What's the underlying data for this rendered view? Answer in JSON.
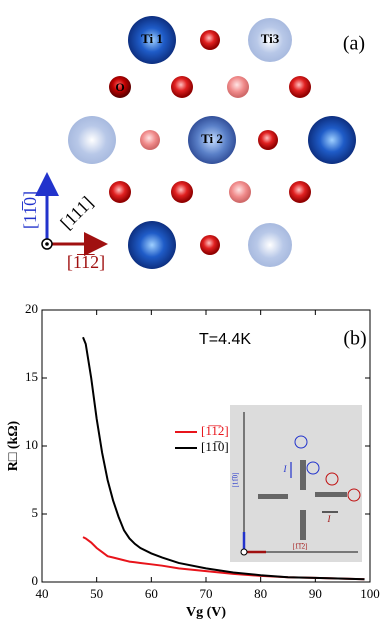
{
  "panel_a": {
    "label": "(a)",
    "atoms": {
      "ti1": "Ti 1",
      "ti3": "Ti3",
      "ti2": "Ti 2",
      "o": "O"
    },
    "directions": {
      "vertical": "[11̅0]",
      "normal": "[111]",
      "horizontal": "[1̅1̅2]"
    }
  },
  "chart_data": {
    "type": "line",
    "label": "(b)",
    "annotation": "T=4.4K",
    "x_label": "Vg (V)",
    "y_label": "R□ (kΩ)",
    "x": [
      47.5,
      48,
      49,
      50,
      51,
      52,
      53,
      54,
      55,
      56,
      57,
      58,
      60,
      62,
      65,
      70,
      75,
      80,
      85,
      90,
      95,
      99
    ],
    "series": [
      {
        "name": "[1̅1̅2]",
        "color": "#e8141b",
        "values": [
          3.3,
          3.2,
          2.9,
          2.5,
          2.2,
          1.9,
          1.8,
          1.7,
          1.6,
          1.5,
          1.45,
          1.4,
          1.3,
          1.2,
          1.0,
          0.8,
          0.6,
          0.45,
          0.35,
          0.3,
          0.25,
          0.2
        ]
      },
      {
        "name": "[11̅0]",
        "color": "#000000",
        "values": [
          18,
          17.5,
          15,
          12,
          9.5,
          7.5,
          6,
          4.8,
          3.8,
          3.2,
          2.8,
          2.5,
          2.1,
          1.8,
          1.4,
          1.0,
          0.7,
          0.5,
          0.35,
          0.3,
          0.25,
          0.2
        ]
      }
    ],
    "xlim": [
      40,
      100
    ],
    "xticks": [
      40,
      50,
      60,
      70,
      80,
      90,
      100
    ],
    "ylim": [
      0,
      20
    ],
    "yticks": [
      0,
      5,
      10,
      15,
      20
    ],
    "inset": {
      "current_labels": [
        "I",
        "I"
      ],
      "axis_labels": [
        "[11̅0]",
        "[1̅1̅2]"
      ]
    }
  }
}
